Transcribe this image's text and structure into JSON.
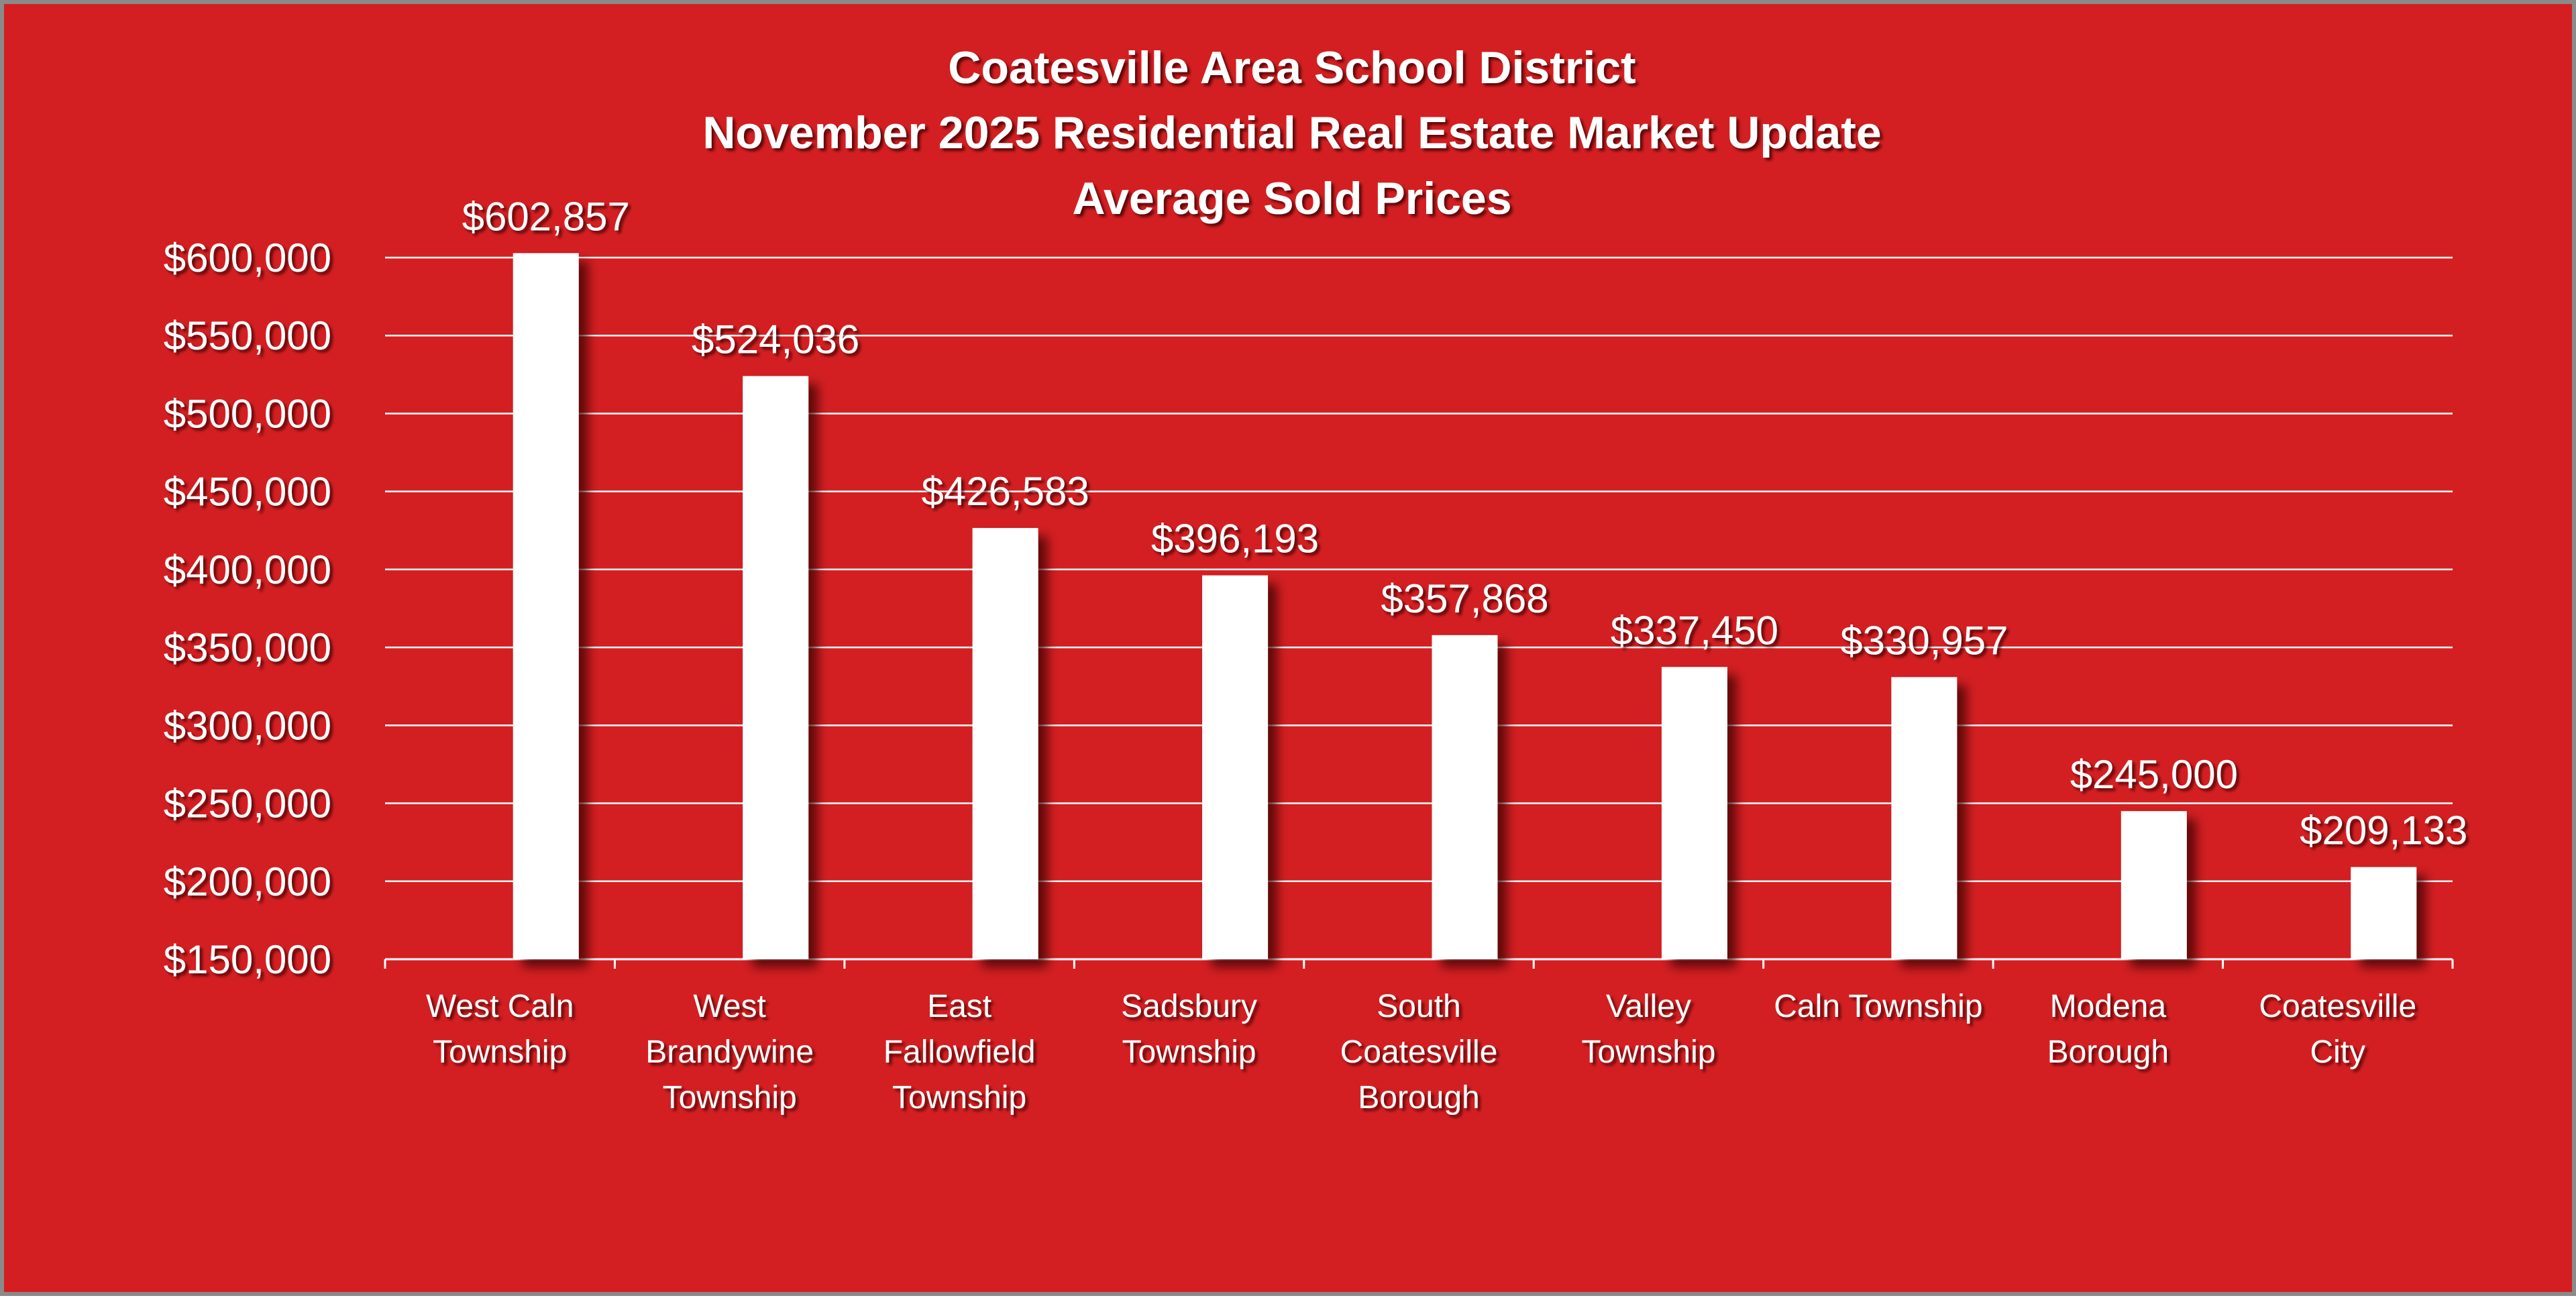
{
  "chart_data": {
    "type": "bar",
    "title": [
      "Coatesville Area School District",
      "November 2025 Residential Real Estate Market Update",
      "Average Sold Prices"
    ],
    "categories": [
      [
        "West Caln",
        "Township"
      ],
      [
        "West",
        "Brandywine",
        "Township"
      ],
      [
        "East",
        "Fallowfield",
        "Township"
      ],
      [
        "Sadsbury",
        "Township"
      ],
      [
        "South",
        "Coatesville",
        "Borough"
      ],
      [
        "Valley",
        "Township"
      ],
      [
        "Caln Township"
      ],
      [
        "Modena",
        "Borough"
      ],
      [
        "Coatesville",
        "City"
      ]
    ],
    "values": [
      602857,
      524036,
      426583,
      396193,
      357868,
      337450,
      330957,
      245000,
      209133
    ],
    "value_labels": [
      "$602,857",
      "$524,036",
      "$426,583",
      "$396,193",
      "$357,868",
      "$337,450",
      "$330,957",
      "$245,000",
      "$209,133"
    ],
    "yticks": [
      150000,
      200000,
      250000,
      300000,
      350000,
      400000,
      450000,
      500000,
      550000,
      600000
    ],
    "ytick_labels": [
      "$150,000",
      "$200,000",
      "$250,000",
      "$300,000",
      "$350,000",
      "$400,000",
      "$450,000",
      "$500,000",
      "$550,000",
      "$600,000"
    ],
    "ylim": [
      150000,
      600000
    ],
    "grid": true,
    "legend": false,
    "colors": {
      "background": "#d41f22",
      "bar": "#ffffff",
      "text": "#ffffff"
    }
  }
}
